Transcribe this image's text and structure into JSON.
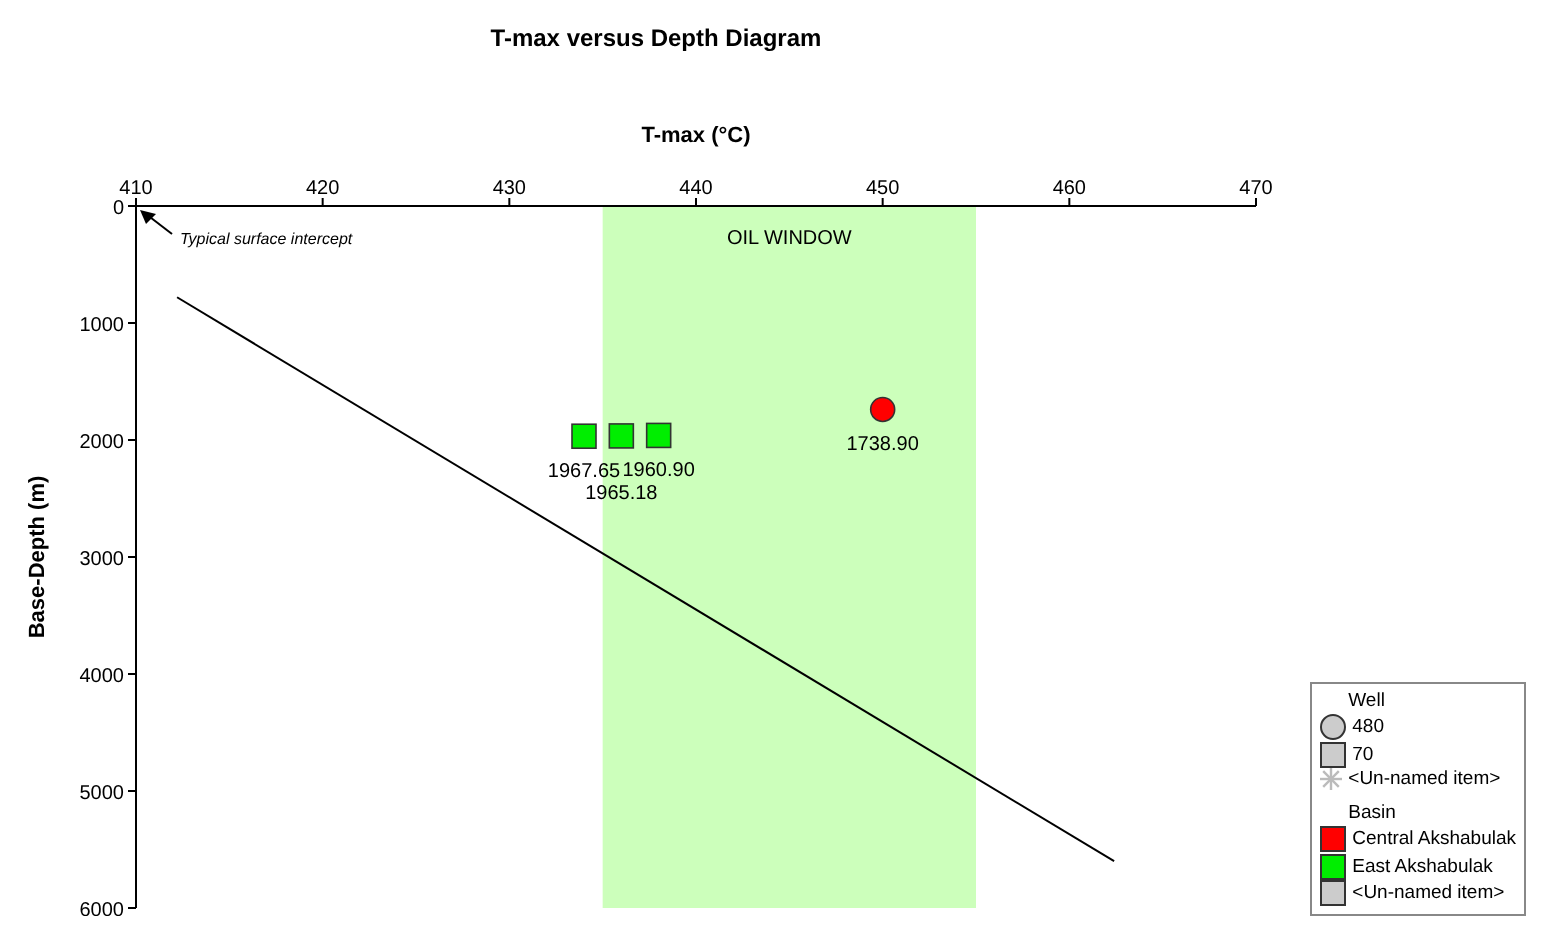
{
  "chart_data": {
    "type": "scatter",
    "title": "T-max versus Depth Diagram",
    "xlabel": "T-max (°C)",
    "ylabel": "Base-Depth (m)",
    "xlim": [
      410,
      470
    ],
    "xticks": [
      410,
      420,
      430,
      440,
      450,
      460,
      470
    ],
    "ylim": [
      6000,
      0
    ],
    "yticks": [
      0,
      1000,
      2000,
      3000,
      4000,
      5000,
      6000
    ],
    "grid": false,
    "legend": "bottom right",
    "legend_title": "Basin",
    "series": [
      {
        "name": "Central Akshabulak",
        "color": "#ff0000",
        "marker": "circle",
        "x": [
          450
        ],
        "values": [
          1738.9
        ],
        "value_labels": [
          "1738.90"
        ]
      },
      {
        "name": "East Akshabulak",
        "color": "#00ee00",
        "marker": "square",
        "x": [
          434,
          436,
          438
        ],
        "values": [
          1967.65,
          1965.18,
          1960.9
        ],
        "value_labels": [
          "1967.65",
          "1965.18",
          "1960.90"
        ]
      },
      {
        "type": "line",
        "color": "#000000",
        "marker": "none",
        "x": [
          412.2,
          462.4
        ],
        "values": [
          780,
          5600
        ]
      }
    ],
    "bands": [
      {
        "axis": "x",
        "from": 435,
        "to": 455,
        "label": "OIL WINDOW",
        "color": "#ccffbb"
      }
    ],
    "annotations": [
      "Typical surface intercept",
      "Well",
      "480",
      "70",
      "<Un-named item>",
      "<Un-named item>"
    ]
  }
}
